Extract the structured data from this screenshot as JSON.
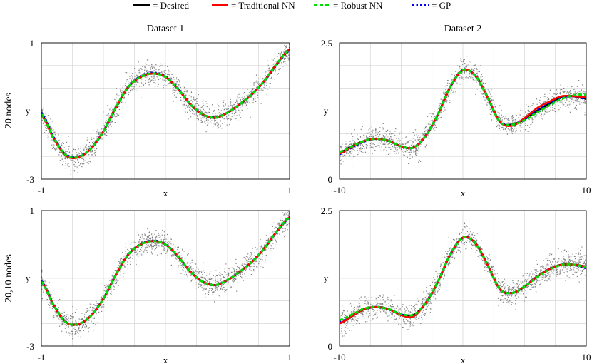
{
  "legend": [
    {
      "label": "= Desired",
      "color": "#000000",
      "style": "solid"
    },
    {
      "label": "= Traditional NN",
      "color": "#ff0000",
      "style": "solid"
    },
    {
      "label": "= Robust NN",
      "color": "#00dd00",
      "style": "dashed"
    },
    {
      "label": "= GP",
      "color": "#0000ee",
      "style": "dotted"
    }
  ],
  "column_titles": [
    "Dataset 1",
    "Dataset 2"
  ],
  "row_labels": [
    "20 nodes",
    "20,10 nodes"
  ],
  "colors": {
    "noise_points": "#808080",
    "frame": "#000000",
    "grid": "#cfcfcf"
  },
  "chart_data": [
    {
      "type": "line",
      "title": "Dataset 1",
      "row_label": "20 nodes",
      "xlabel": "x",
      "ylabel": "y",
      "xlim": [
        -1,
        1
      ],
      "ylim": [
        -3,
        1
      ],
      "xtick_labels": [
        "-1",
        "1"
      ],
      "ytick_labels": [
        "-3",
        "1"
      ],
      "grid": true,
      "scatter_noise": true,
      "x": [
        -1,
        -0.9,
        -0.8,
        -0.7,
        -0.6,
        -0.5,
        -0.4,
        -0.3,
        -0.2,
        -0.1,
        0,
        0.1,
        0.2,
        0.3,
        0.4,
        0.5,
        0.6,
        0.7,
        0.8,
        0.9,
        1
      ],
      "series": [
        {
          "name": "= Desired",
          "values": [
            -1.1,
            -1.8,
            -2.3,
            -2.35,
            -2.1,
            -1.6,
            -0.9,
            -0.3,
            0.0,
            0.1,
            0.0,
            -0.35,
            -0.8,
            -1.1,
            -1.2,
            -1.05,
            -0.8,
            -0.5,
            -0.1,
            0.4,
            0.8
          ]
        },
        {
          "name": "= Traditional NN",
          "values": [
            -1.1,
            -1.8,
            -2.3,
            -2.35,
            -2.1,
            -1.6,
            -0.9,
            -0.3,
            0.0,
            0.1,
            0.0,
            -0.35,
            -0.8,
            -1.1,
            -1.2,
            -1.05,
            -0.8,
            -0.5,
            -0.1,
            0.4,
            0.8
          ]
        },
        {
          "name": "= Robust NN",
          "values": [
            -1.05,
            -1.78,
            -2.28,
            -2.34,
            -2.1,
            -1.6,
            -0.92,
            -0.3,
            0.02,
            0.12,
            0.02,
            -0.34,
            -0.8,
            -1.1,
            -1.19,
            -1.05,
            -0.8,
            -0.5,
            -0.1,
            0.38,
            0.78
          ]
        },
        {
          "name": "= GP",
          "values": [
            -1.12,
            -1.82,
            -2.32,
            -2.36,
            -2.1,
            -1.6,
            -0.9,
            -0.3,
            0.0,
            0.1,
            0.0,
            -0.35,
            -0.8,
            -1.1,
            -1.2,
            -1.05,
            -0.8,
            -0.5,
            -0.1,
            0.4,
            0.8
          ]
        }
      ]
    },
    {
      "type": "line",
      "title": "Dataset 2",
      "row_label": "20 nodes",
      "xlabel": "x",
      "ylabel": "y",
      "xlim": [
        -10,
        10
      ],
      "ylim": [
        0,
        2.5
      ],
      "xtick_labels": [
        "-10",
        "10"
      ],
      "ytick_labels": [
        "0",
        "2.5"
      ],
      "grid": true,
      "scatter_noise": true,
      "x": [
        -10,
        -9,
        -8,
        -7,
        -6,
        -5,
        -4,
        -3,
        -2,
        -1,
        0,
        1,
        2,
        3,
        4,
        5,
        6,
        7,
        8,
        9,
        10
      ],
      "series": [
        {
          "name": "= Desired",
          "values": [
            0.48,
            0.6,
            0.7,
            0.74,
            0.7,
            0.6,
            0.58,
            0.8,
            1.2,
            1.7,
            2.0,
            1.9,
            1.5,
            1.05,
            1.0,
            1.1,
            1.25,
            1.38,
            1.5,
            1.52,
            1.48
          ]
        },
        {
          "name": "= Traditional NN",
          "values": [
            0.5,
            0.6,
            0.7,
            0.74,
            0.7,
            0.6,
            0.58,
            0.8,
            1.2,
            1.7,
            2.0,
            1.9,
            1.5,
            1.05,
            1.0,
            1.08,
            1.22,
            1.35,
            1.47,
            1.54,
            1.55
          ]
        },
        {
          "name": "= Robust NN",
          "values": [
            0.46,
            0.58,
            0.69,
            0.74,
            0.7,
            0.6,
            0.58,
            0.8,
            1.2,
            1.7,
            2.0,
            1.9,
            1.5,
            1.05,
            1.0,
            1.1,
            1.27,
            1.4,
            1.5,
            1.52,
            1.47
          ]
        },
        {
          "name": "= GP",
          "values": [
            0.47,
            0.59,
            0.7,
            0.74,
            0.7,
            0.6,
            0.58,
            0.8,
            1.2,
            1.7,
            2.0,
            1.9,
            1.5,
            1.05,
            0.98,
            1.12,
            1.3,
            1.42,
            1.52,
            1.52,
            1.5
          ]
        }
      ]
    },
    {
      "type": "line",
      "title": "",
      "row_label": "20,10 nodes",
      "xlabel": "x",
      "ylabel": "y",
      "xlim": [
        -1,
        1
      ],
      "ylim": [
        -3,
        1
      ],
      "xtick_labels": [
        "-1",
        "1"
      ],
      "ytick_labels": [
        "-3",
        "1"
      ],
      "grid": true,
      "scatter_noise": true,
      "x": [
        -1,
        -0.9,
        -0.8,
        -0.7,
        -0.6,
        -0.5,
        -0.4,
        -0.3,
        -0.2,
        -0.1,
        0,
        0.1,
        0.2,
        0.3,
        0.4,
        0.5,
        0.6,
        0.7,
        0.8,
        0.9,
        1
      ],
      "series": [
        {
          "name": "= Desired",
          "values": [
            -1.1,
            -1.8,
            -2.3,
            -2.35,
            -2.1,
            -1.6,
            -0.9,
            -0.3,
            0.0,
            0.1,
            0.0,
            -0.35,
            -0.8,
            -1.1,
            -1.2,
            -1.05,
            -0.8,
            -0.5,
            -0.1,
            0.4,
            0.8
          ]
        },
        {
          "name": "= Traditional NN",
          "values": [
            -1.1,
            -1.8,
            -2.3,
            -2.35,
            -2.1,
            -1.6,
            -0.9,
            -0.3,
            0.0,
            0.1,
            0.0,
            -0.35,
            -0.8,
            -1.1,
            -1.2,
            -1.05,
            -0.8,
            -0.5,
            -0.1,
            0.4,
            0.8
          ]
        },
        {
          "name": "= Robust NN",
          "values": [
            -1.08,
            -1.79,
            -2.29,
            -2.35,
            -2.1,
            -1.6,
            -0.9,
            -0.3,
            0.01,
            0.11,
            0.01,
            -0.35,
            -0.8,
            -1.1,
            -1.2,
            -1.05,
            -0.8,
            -0.5,
            -0.1,
            0.39,
            0.79
          ]
        },
        {
          "name": "= GP",
          "values": [
            -1.1,
            -1.8,
            -2.3,
            -2.35,
            -2.1,
            -1.6,
            -0.9,
            -0.3,
            0.0,
            0.1,
            0.0,
            -0.35,
            -0.8,
            -1.1,
            -1.2,
            -1.05,
            -0.8,
            -0.5,
            -0.1,
            0.4,
            0.8
          ]
        }
      ]
    },
    {
      "type": "line",
      "title": "",
      "row_label": "20,10 nodes",
      "xlabel": "x",
      "ylabel": "y",
      "xlim": [
        -10,
        10
      ],
      "ylim": [
        0,
        2.5
      ],
      "xtick_labels": [
        "-10",
        "10"
      ],
      "ytick_labels": [
        "0",
        "2.5"
      ],
      "grid": true,
      "scatter_noise": true,
      "x": [
        -10,
        -9,
        -8,
        -7,
        -6,
        -5,
        -4,
        -3,
        -2,
        -1,
        0,
        1,
        2,
        3,
        4,
        5,
        6,
        7,
        8,
        9,
        10
      ],
      "series": [
        {
          "name": "= Desired",
          "values": [
            0.42,
            0.55,
            0.68,
            0.72,
            0.68,
            0.58,
            0.57,
            0.8,
            1.2,
            1.7,
            2.0,
            1.9,
            1.5,
            1.05,
            0.98,
            1.1,
            1.28,
            1.42,
            1.5,
            1.5,
            1.47
          ]
        },
        {
          "name": "= Traditional NN",
          "values": [
            0.48,
            0.58,
            0.69,
            0.72,
            0.68,
            0.59,
            0.58,
            0.8,
            1.2,
            1.7,
            2.0,
            1.9,
            1.5,
            1.05,
            0.98,
            1.1,
            1.27,
            1.41,
            1.5,
            1.5,
            1.46
          ]
        },
        {
          "name": "= Robust NN",
          "values": [
            0.44,
            0.56,
            0.68,
            0.72,
            0.68,
            0.58,
            0.57,
            0.8,
            1.2,
            1.7,
            2.0,
            1.9,
            1.5,
            1.05,
            0.98,
            1.1,
            1.28,
            1.42,
            1.5,
            1.5,
            1.44
          ]
        },
        {
          "name": "= GP",
          "values": [
            0.42,
            0.55,
            0.68,
            0.72,
            0.68,
            0.57,
            0.55,
            0.8,
            1.2,
            1.7,
            2.0,
            1.9,
            1.5,
            1.05,
            0.98,
            1.1,
            1.28,
            1.42,
            1.5,
            1.5,
            1.47
          ]
        }
      ]
    }
  ]
}
